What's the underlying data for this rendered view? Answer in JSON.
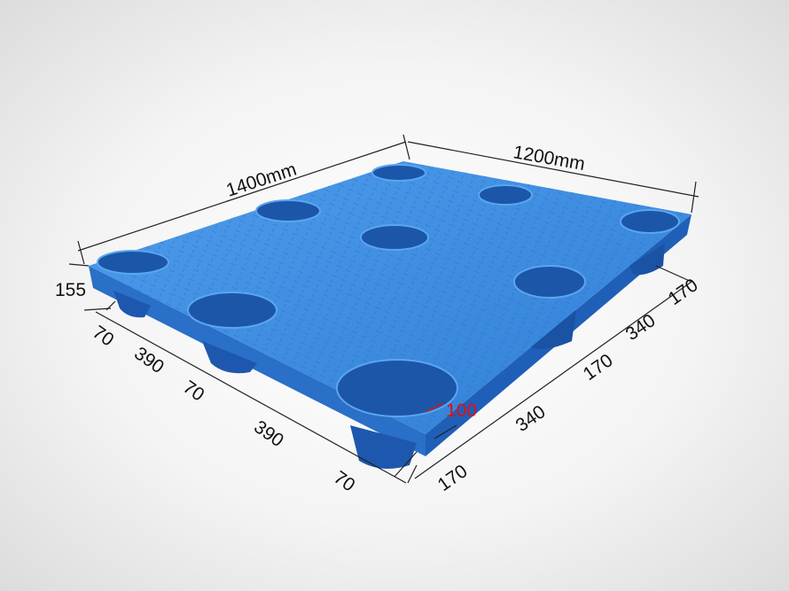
{
  "colors": {
    "pallet": "#3d8fe3",
    "pallet_dark": "#1f5fb8",
    "highlight": "#e01010"
  },
  "dimensions": {
    "length": "1400mm",
    "width": "1200mm",
    "height": "155",
    "left_segments": [
      "70",
      "390",
      "70",
      "390",
      "70"
    ],
    "right_segments": [
      "170",
      "340",
      "170",
      "340",
      "170"
    ],
    "foot_width": "100"
  }
}
